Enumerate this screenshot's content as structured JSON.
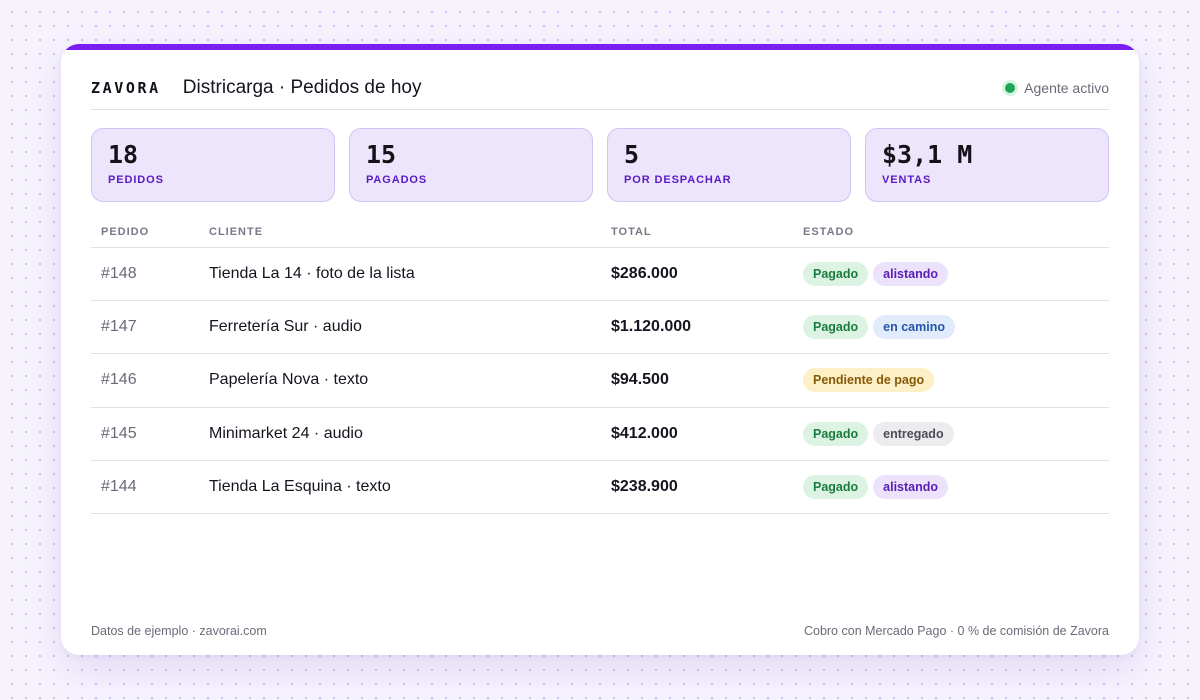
{
  "header": {
    "logo": "ZAVORA",
    "title": "Districarga · Pedidos de hoy",
    "status": "Agente activo"
  },
  "stats": [
    {
      "value": "18",
      "label": "PEDIDOS"
    },
    {
      "value": "15",
      "label": "PAGADOS"
    },
    {
      "value": "5",
      "label": "POR DESPACHAR"
    },
    {
      "value": "$3,1 M",
      "label": "VENTAS"
    }
  ],
  "table": {
    "columns": [
      "PEDIDO",
      "CLIENTE",
      "TOTAL",
      "ESTADO"
    ],
    "rows": [
      {
        "id": "#148",
        "client": "Tienda La 14 · foto de la lista",
        "total": "$286.000",
        "payment": "Pagado",
        "payment_type": "pagado",
        "fulfillment": "alistando",
        "fulfillment_type": "alistando"
      },
      {
        "id": "#147",
        "client": "Ferretería Sur · audio",
        "total": "$1.120.000",
        "payment": "Pagado",
        "payment_type": "pagado",
        "fulfillment": "en camino",
        "fulfillment_type": "encamino"
      },
      {
        "id": "#146",
        "client": "Papelería Nova · texto",
        "total": "$94.500",
        "payment": "Pendiente de pago",
        "payment_type": "pend",
        "fulfillment": null,
        "fulfillment_type": null
      },
      {
        "id": "#145",
        "client": "Minimarket 24 · audio",
        "total": "$412.000",
        "payment": "Pagado",
        "payment_type": "pagado",
        "fulfillment": "entregado",
        "fulfillment_type": "entregado"
      },
      {
        "id": "#144",
        "client": "Tienda La Esquina · texto",
        "total": "$238.900",
        "payment": "Pagado",
        "payment_type": "pagado",
        "fulfillment": "alistando",
        "fulfillment_type": "alistando"
      }
    ]
  },
  "footer": {
    "left": "Datos de ejemplo · zavorai.com",
    "right": "Cobro con Mercado Pago · 0 % de comisión de Zavora"
  },
  "colors": {
    "accent": "#7a1ff0",
    "status_active": "#1fa556"
  }
}
